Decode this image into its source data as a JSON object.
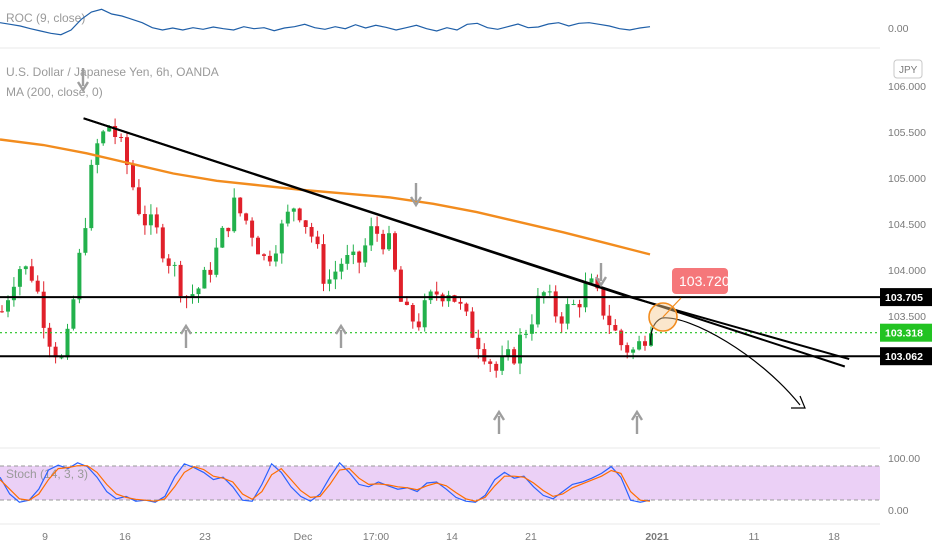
{
  "chart_data": [
    {
      "type": "line",
      "pane": "roc",
      "title": "ROC (9, close)",
      "ylim": [
        -0.6,
        0.6
      ],
      "y_ticks": [
        "0.00"
      ],
      "series": [
        {
          "name": "ROC",
          "color": "#1f5fa8",
          "values": [
            0.1,
            0.05,
            0.0,
            -0.08,
            -0.15,
            -0.22,
            -0.26,
            -0.12,
            0.2,
            0.42,
            0.5,
            0.36,
            0.3,
            0.2,
            0.1,
            -0.05,
            -0.12,
            -0.06,
            -0.12,
            -0.05,
            -0.1,
            -0.03,
            -0.08,
            -0.12,
            -0.02,
            -0.08,
            -0.05,
            -0.14,
            -0.06,
            -0.02,
            0.05,
            -0.05,
            -0.1,
            -0.02,
            -0.08,
            0.04,
            -0.06,
            0.02,
            -0.04,
            -0.12,
            -0.05,
            0.02,
            -0.08,
            -0.15,
            -0.05,
            -0.12,
            0.05,
            0.08,
            -0.05,
            -0.1,
            -0.02,
            0.06,
            -0.05,
            -0.03,
            0.06,
            0.1,
            0.0,
            0.08,
            0.1,
            0.05,
            0.0,
            -0.08,
            -0.12,
            -0.06,
            -0.02
          ]
        }
      ]
    },
    {
      "type": "candlestick",
      "pane": "price",
      "title": "U.S. Dollar / Japanese Yen, 6h, OANDA",
      "subtitle": "MA (200, close, 0)",
      "currency": "JPY",
      "ylim": [
        102.15,
        106.35
      ],
      "y_ticks": [
        "106.000",
        "105.500",
        "105.000",
        "104.500",
        "104.000",
        "103.500"
      ],
      "x_ticks": [
        "9",
        "16",
        "23",
        "Dec",
        "17:00",
        "14",
        "21",
        "2021",
        "11",
        "18"
      ],
      "up_color": "#26a69a",
      "up_color_display": "#22b14c",
      "down_color": "#e0202a",
      "close_path": [
        103.55,
        104.05,
        103.95,
        103.3,
        102.95,
        104.1,
        105.3,
        105.6,
        105.2,
        104.6,
        104.4,
        104.05,
        103.7,
        103.85,
        104.25,
        104.7,
        104.5,
        104.1,
        104.4,
        104.75,
        104.4,
        103.85,
        104.1,
        104.05,
        104.45,
        104.3,
        103.5,
        103.45,
        103.75,
        103.8,
        103.45,
        103.2,
        102.9,
        103.05,
        103.4,
        103.75,
        103.5,
        103.6,
        103.85,
        103.55,
        103.2,
        103.1,
        103.45
      ],
      "ma200": {
        "name": "MA 200",
        "color": "#f28c1e",
        "values": [
          105.42,
          105.36,
          105.27,
          105.16,
          105.05,
          104.97,
          104.92,
          104.87,
          104.83,
          104.79,
          104.72,
          104.63,
          104.52,
          104.41,
          104.29,
          104.17
        ]
      },
      "trendlines": [
        {
          "name": "upper-trendline",
          "from": [
            0.095,
            105.65
          ],
          "to": [
            0.96,
            102.95
          ]
        },
        {
          "name": "lower-trendline",
          "from": [
            0.095,
            105.65
          ],
          "to": [
            0.71,
            103.72
          ]
        },
        {
          "name": "support-line",
          "from": [
            0.0,
            103.06
          ],
          "to": [
            1.0,
            103.06
          ]
        },
        {
          "name": "resistance-line",
          "from": [
            0.0,
            103.705
          ],
          "to": [
            1.0,
            103.705
          ]
        }
      ],
      "horizontal_levels": [
        {
          "name": "resistance",
          "value": 103.705,
          "label": "103.705",
          "style": "solid",
          "color": "#000000"
        },
        {
          "name": "support",
          "value": 103.062,
          "label": "103.062",
          "style": "solid",
          "color": "#000000"
        },
        {
          "name": "current-price",
          "value": 103.318,
          "label": "103.318",
          "style": "dotted",
          "color": "#22c322"
        }
      ],
      "annotations": [
        {
          "name": "breakout-marker",
          "label": "103.720",
          "value": 103.72
        }
      ]
    },
    {
      "type": "line",
      "pane": "stoch",
      "title": "Stoch (14, 3, 3)",
      "ylim": [
        0,
        100
      ],
      "y_ticks": [
        "100.00",
        "0.00"
      ],
      "band": [
        80,
        20
      ],
      "series": [
        {
          "name": "%K",
          "color": "#2962ff",
          "values": [
            60,
            25,
            8,
            12,
            35,
            75,
            85,
            78,
            90,
            82,
            60,
            30,
            15,
            20,
            10,
            12,
            8,
            20,
            60,
            88,
            80,
            70,
            55,
            60,
            40,
            12,
            10,
            45,
            88,
            70,
            40,
            20,
            10,
            25,
            60,
            90,
            70,
            45,
            40,
            50,
            42,
            35,
            38,
            30,
            48,
            50,
            35,
            18,
            10,
            8,
            22,
            55,
            70,
            58,
            62,
            40,
            22,
            15,
            30,
            45,
            50,
            58,
            68,
            82,
            60,
            12,
            8,
            12
          ]
        },
        {
          "name": "%D",
          "color": "#ff6d00",
          "values": [
            55,
            35,
            15,
            12,
            25,
            55,
            78,
            80,
            84,
            84,
            70,
            45,
            25,
            18,
            14,
            12,
            10,
            15,
            40,
            70,
            82,
            76,
            62,
            58,
            50,
            25,
            14,
            30,
            65,
            78,
            55,
            32,
            18,
            20,
            45,
            75,
            78,
            58,
            45,
            46,
            44,
            40,
            38,
            34,
            42,
            48,
            42,
            28,
            15,
            10,
            18,
            42,
            62,
            62,
            60,
            48,
            32,
            20,
            25,
            38,
            46,
            54,
            62,
            74,
            68,
            30,
            12,
            10
          ]
        }
      ]
    }
  ]
}
